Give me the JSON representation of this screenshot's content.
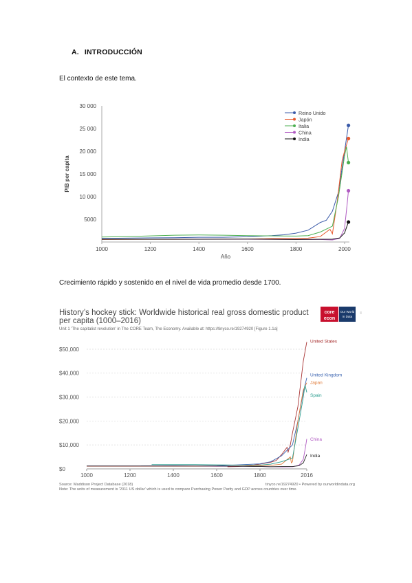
{
  "document": {
    "heading_number": "A.",
    "heading_title": "INTRODUCCIÓN",
    "paragraph_1": "El contexto de este tema.",
    "paragraph_2": "Crecimiento rápido y sostenido en el nivel de vida promedio desde 1700."
  },
  "chart_data": [
    {
      "type": "line",
      "title": "",
      "xlabel": "Año",
      "ylabel": "PIB per capita",
      "xlim": [
        1000,
        2020
      ],
      "ylim": [
        0,
        30000
      ],
      "xticks": [
        1000,
        1200,
        1400,
        1600,
        1800,
        2000
      ],
      "yticks": [
        5000,
        10000,
        15000,
        20000,
        25000,
        30000
      ],
      "ytick_labels": [
        "5000",
        "10 000",
        "15 000",
        "20 000",
        "25 000",
        "30 000"
      ],
      "grid": false,
      "legend": "top-right",
      "series": [
        {
          "name": "Reino Unido",
          "color": "#3b5ba9",
          "x": [
            1000,
            1100,
            1200,
            1300,
            1400,
            1500,
            1600,
            1700,
            1750,
            1800,
            1850,
            1900,
            1925,
            1950,
            1975,
            2000,
            2016
          ],
          "y": [
            800,
            850,
            900,
            950,
            1050,
            1050,
            1150,
            1400,
            1600,
            1950,
            2600,
            4300,
            4800,
            6800,
            11000,
            20000,
            25700
          ]
        },
        {
          "name": "Japón",
          "color": "#e8582c",
          "x": [
            1000,
            1200,
            1400,
            1600,
            1700,
            1800,
            1850,
            1900,
            1940,
            1950,
            1970,
            1990,
            2000,
            2016
          ],
          "y": [
            550,
            580,
            600,
            650,
            750,
            800,
            850,
            1200,
            2800,
            1800,
            9000,
            18000,
            20000,
            22800
          ]
        },
        {
          "name": "Italia",
          "color": "#4caf50",
          "x": [
            1000,
            1100,
            1300,
            1400,
            1500,
            1600,
            1700,
            1800,
            1850,
            1900,
            1950,
            1975,
            2000,
            2008,
            2016
          ],
          "y": [
            1100,
            1200,
            1500,
            1550,
            1500,
            1400,
            1350,
            1300,
            1400,
            2200,
            3500,
            10000,
            19000,
            21000,
            17500
          ]
        },
        {
          "name": "China",
          "color": "#b05ac2",
          "x": [
            1000,
            1200,
            1400,
            1600,
            1800,
            1900,
            1950,
            1980,
            2000,
            2010,
            2016
          ],
          "y": [
            600,
            600,
            650,
            600,
            550,
            550,
            450,
            800,
            3000,
            8000,
            11300
          ]
        },
        {
          "name": "India",
          "color": "#111111",
          "x": [
            1000,
            1200,
            1400,
            1600,
            1800,
            1900,
            1950,
            1980,
            2000,
            2016
          ],
          "y": [
            600,
            600,
            600,
            650,
            550,
            600,
            620,
            900,
            2000,
            4400
          ]
        }
      ]
    },
    {
      "type": "line",
      "title": "History’s hockey stick: Worldwide historical real gross domestic product per capita (1000–2016)",
      "subtitle": "Unit 1 'The capitalist revolution' in The CORE Team, The Economy. Available at: https://tinyco.re/19274920 [Figure 1.1a]",
      "source": "Source: Maddison Project Database (2018)",
      "credit": "tinyco.re/19274920 • Powered by ourworldindata.org",
      "note": "Note: The units of measurement is '2011 US dollar' which is used to compare Purchasing Power Parity and GDP across countries over time.",
      "logo_core_top": "core",
      "logo_core_bottom": "econ",
      "logo_owid_top": "Our World",
      "logo_owid_bottom": "in Data",
      "xlim": [
        1000,
        2016
      ],
      "ylim": [
        0,
        54000
      ],
      "xticks": [
        1000,
        1200,
        1400,
        1600,
        1800,
        2016
      ],
      "yticks": [
        0,
        10000,
        20000,
        30000,
        40000,
        50000
      ],
      "ytick_labels": [
        "$0",
        "$10,000",
        "$20,000",
        "$30,000",
        "$40,000",
        "$50,000"
      ],
      "grid": true,
      "legend": "line-end labels",
      "series": [
        {
          "name": "United States",
          "color": "#a83232",
          "x": [
            1650,
            1700,
            1750,
            1800,
            1850,
            1875,
            1900,
            1925,
            1930,
            1940,
            1950,
            1975,
            2000,
            2016
          ],
          "y": [
            900,
            1000,
            1300,
            2000,
            2800,
            3500,
            6000,
            9000,
            7000,
            10000,
            15000,
            26000,
            45000,
            53000
          ]
        },
        {
          "name": "United Kingdom",
          "color": "#3a63b0",
          "x": [
            1250,
            1400,
            1500,
            1600,
            1700,
            1800,
            1850,
            1900,
            1950,
            1975,
            2000,
            2016
          ],
          "y": [
            1200,
            1300,
            1200,
            1300,
            1700,
            2100,
            3000,
            5500,
            10000,
            20000,
            32000,
            38000
          ]
        },
        {
          "name": "Japan",
          "color": "#e07b39",
          "x": [
            1000,
            1300,
            1600,
            1700,
            1800,
            1850,
            1900,
            1940,
            1945,
            1950,
            1975,
            2000,
            2016
          ],
          "y": [
            1100,
            1100,
            1100,
            1200,
            1300,
            1500,
            2000,
            5000,
            2500,
            3000,
            20000,
            33000,
            36000
          ]
        },
        {
          "name": "Spain",
          "color": "#2a9d8f",
          "x": [
            1300,
            1400,
            1500,
            1600,
            1700,
            1800,
            1850,
            1900,
            1950,
            1975,
            2000,
            2008,
            2016
          ],
          "y": [
            1800,
            1800,
            1800,
            1700,
            1600,
            1600,
            2000,
            3000,
            4500,
            17000,
            30000,
            35000,
            32000
          ]
        },
        {
          "name": "China",
          "color": "#b05ac2",
          "x": [
            1000,
            1300,
            1500,
            1600,
            1700,
            1800,
            1850,
            1900,
            1950,
            1980,
            2000,
            2010,
            2016
          ],
          "y": [
            1200,
            1200,
            1200,
            1100,
            1100,
            1000,
            900,
            800,
            900,
            1500,
            4000,
            9000,
            12500
          ]
        },
        {
          "name": "India",
          "color": "#222222",
          "x": [
            1000,
            1300,
            1600,
            1700,
            1800,
            1850,
            1900,
            1950,
            1980,
            2000,
            2016
          ],
          "y": [
            1200,
            1200,
            1200,
            1100,
            1000,
            900,
            1000,
            1000,
            1300,
            2500,
            6000
          ]
        }
      ]
    }
  ]
}
